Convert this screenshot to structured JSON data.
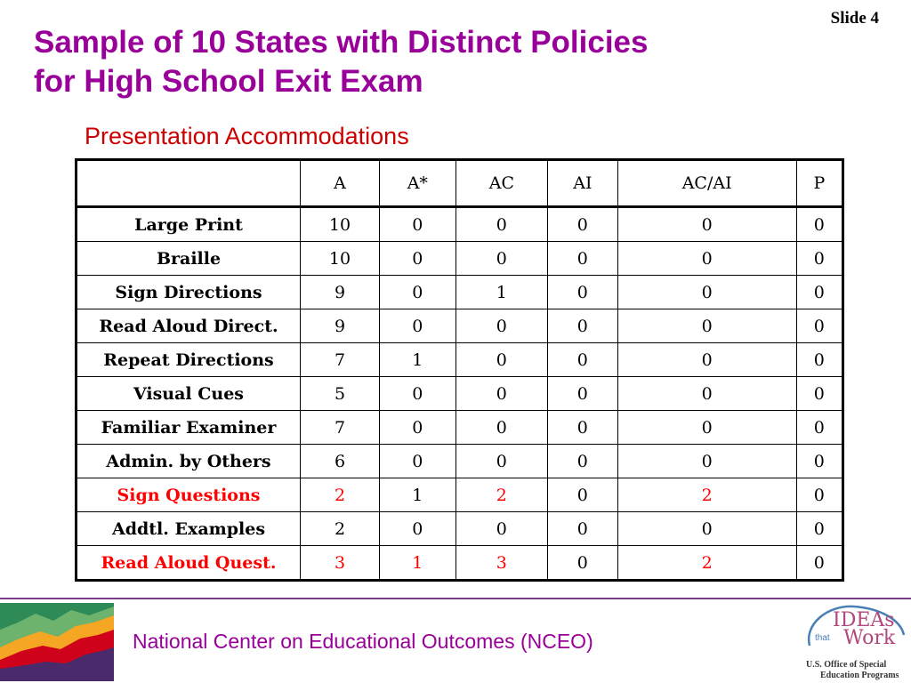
{
  "slide_label": "Slide 4",
  "title_line1": "Sample of 10 States with Distinct Policies",
  "title_line2": "for High School Exit Exam",
  "subtitle": "Presentation Accommodations",
  "table": {
    "columns": [
      "",
      "A",
      "A*",
      "AC",
      "AI",
      "AC/AI",
      "P"
    ],
    "rows": [
      {
        "label": "Large Print",
        "values": [
          "10",
          "0",
          "0",
          "0",
          "0",
          "0"
        ],
        "highlight": [
          false,
          false,
          false,
          false,
          false,
          false
        ],
        "label_highlight": false
      },
      {
        "label": "Braille",
        "values": [
          "10",
          "0",
          "0",
          "0",
          "0",
          "0"
        ],
        "highlight": [
          false,
          false,
          false,
          false,
          false,
          false
        ],
        "label_highlight": false
      },
      {
        "label": "Sign Directions",
        "values": [
          "9",
          "0",
          "1",
          "0",
          "0",
          "0"
        ],
        "highlight": [
          false,
          false,
          false,
          false,
          false,
          false
        ],
        "label_highlight": false
      },
      {
        "label": "Read Aloud Direct.",
        "values": [
          "9",
          "0",
          "0",
          "0",
          "0",
          "0"
        ],
        "highlight": [
          false,
          false,
          false,
          false,
          false,
          false
        ],
        "label_highlight": false
      },
      {
        "label": "Repeat Directions",
        "values": [
          "7",
          "1",
          "0",
          "0",
          "0",
          "0"
        ],
        "highlight": [
          false,
          false,
          false,
          false,
          false,
          false
        ],
        "label_highlight": false
      },
      {
        "label": "Visual Cues",
        "values": [
          "5",
          "0",
          "0",
          "0",
          "0",
          "0"
        ],
        "highlight": [
          false,
          false,
          false,
          false,
          false,
          false
        ],
        "label_highlight": false
      },
      {
        "label": "Familiar Examiner",
        "values": [
          "7",
          "0",
          "0",
          "0",
          "0",
          "0"
        ],
        "highlight": [
          false,
          false,
          false,
          false,
          false,
          false
        ],
        "label_highlight": false
      },
      {
        "label": "Admin. by Others",
        "values": [
          "6",
          "0",
          "0",
          "0",
          "0",
          "0"
        ],
        "highlight": [
          false,
          false,
          false,
          false,
          false,
          false
        ],
        "label_highlight": false
      },
      {
        "label": "Sign Questions",
        "values": [
          "2",
          "1",
          "2",
          "0",
          "2",
          "0"
        ],
        "highlight": [
          true,
          false,
          true,
          false,
          true,
          false
        ],
        "label_highlight": true
      },
      {
        "label": "Addtl. Examples",
        "values": [
          "2",
          "0",
          "0",
          "0",
          "0",
          "0"
        ],
        "highlight": [
          false,
          false,
          false,
          false,
          false,
          false
        ],
        "label_highlight": false
      },
      {
        "label": "Read Aloud Quest.",
        "values": [
          "3",
          "1",
          "3",
          "0",
          "2",
          "0"
        ],
        "highlight": [
          true,
          true,
          true,
          false,
          true,
          false
        ],
        "label_highlight": true
      }
    ]
  },
  "footer": {
    "organization": "National Center on Educational Outcomes (NCEO)",
    "logo_left_icon": "area-chart-logo-icon",
    "logo_right": {
      "line1": "IDEAs",
      "line2": "that",
      "line3": "Work",
      "caption1": "U.S. Office of Special",
      "caption2": "Education Programs"
    }
  },
  "colors": {
    "title": "#990099",
    "subtitle": "#cc0000",
    "highlight": "#ff0000",
    "footer_text": "#990099",
    "rule": "#7a3d8e"
  }
}
